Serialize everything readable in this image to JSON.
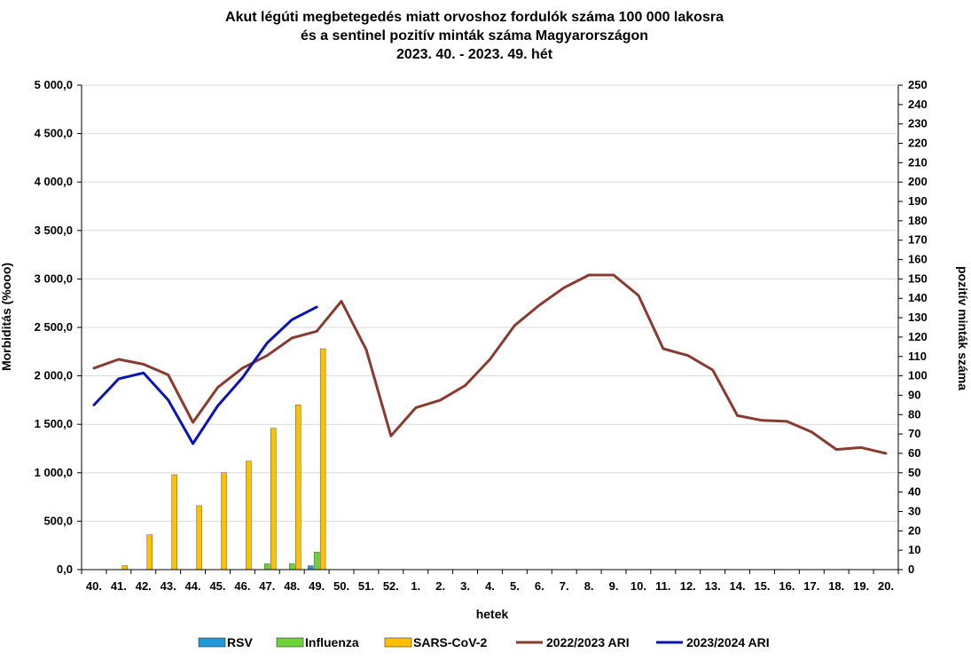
{
  "chart_data": {
    "type": "bar+line",
    "title": [
      "Akut légúti megbetegedés miatt orvoshoz fordulók száma 100 000 lakosra",
      "és a sentinel pozitív minták száma Magyarországon",
      "2023. 40. - 2023. 49. hét"
    ],
    "xlabel": "hetek",
    "ylabel_left": "Morbiditás (%ooo)",
    "ylabel_right": "pozitív minták száma",
    "ylim_left": [
      0,
      5000
    ],
    "ylim_right": [
      0,
      250
    ],
    "grid": true,
    "legend_position": "bottom",
    "categories": [
      "40.",
      "41.",
      "42.",
      "43.",
      "44.",
      "45.",
      "46.",
      "47.",
      "48.",
      "49.",
      "50.",
      "51.",
      "52.",
      "1.",
      "2.",
      "3.",
      "4.",
      "5.",
      "6.",
      "7.",
      "8.",
      "9.",
      "10.",
      "11.",
      "12.",
      "13.",
      "14.",
      "15.",
      "16.",
      "17.",
      "18.",
      "19.",
      "20."
    ],
    "left_ticks": [
      "0,0",
      "500,0",
      "1 000,0",
      "1 500,0",
      "2 000,0",
      "2 500,0",
      "3 000,0",
      "3 500,0",
      "4 000,0",
      "4 500,0",
      "5 000,0"
    ],
    "right_ticks": [
      "0",
      "10",
      "20",
      "30",
      "40",
      "50",
      "60",
      "70",
      "80",
      "90",
      "100",
      "110",
      "120",
      "130",
      "140",
      "150",
      "160",
      "170",
      "180",
      "190",
      "200",
      "210",
      "220",
      "230",
      "240",
      "250"
    ],
    "bar_series": [
      {
        "name": "RSV",
        "color": "#1f9ad6",
        "axis": "right",
        "values": [
          0,
          0,
          0,
          0,
          0,
          0,
          0,
          0,
          0,
          2,
          null,
          null,
          null,
          null,
          null,
          null,
          null,
          null,
          null,
          null,
          null,
          null,
          null,
          null,
          null,
          null,
          null,
          null,
          null,
          null,
          null,
          null,
          null
        ]
      },
      {
        "name": "Influenza",
        "color": "#6ed23b",
        "axis": "right",
        "values": [
          0,
          0,
          0,
          0,
          0,
          0,
          0,
          3,
          3,
          9,
          null,
          null,
          null,
          null,
          null,
          null,
          null,
          null,
          null,
          null,
          null,
          null,
          null,
          null,
          null,
          null,
          null,
          null,
          null,
          null,
          null,
          null,
          null
        ]
      },
      {
        "name": "SARS-CoV-2",
        "color": "#ffc000",
        "axis": "right",
        "values": [
          0,
          2,
          18,
          49,
          33,
          50,
          56,
          73,
          85,
          114,
          null,
          null,
          null,
          null,
          null,
          null,
          null,
          null,
          null,
          null,
          null,
          null,
          null,
          null,
          null,
          null,
          null,
          null,
          null,
          null,
          null,
          null,
          null
        ]
      }
    ],
    "line_series": [
      {
        "name": "2022/2023 ARI",
        "color": "#8b3a2f",
        "axis": "left",
        "values": [
          2080,
          2170,
          2120,
          2010,
          1520,
          1880,
          2080,
          2210,
          2390,
          2460,
          2770,
          2270,
          1380,
          1670,
          1750,
          1900,
          2170,
          2520,
          2730,
          2910,
          3040,
          3040,
          2830,
          2280,
          2210,
          2060,
          1590,
          1540,
          1530,
          1420,
          1240,
          1260,
          1200
        ]
      },
      {
        "name": "2023/2024 ARI",
        "color": "#0a14b4",
        "axis": "left",
        "values": [
          1700,
          1970,
          2030,
          1750,
          1300,
          1690,
          1980,
          2340,
          2580,
          2710,
          null,
          null,
          null,
          null,
          null,
          null,
          null,
          null,
          null,
          null,
          null,
          null,
          null,
          null,
          null,
          null,
          null,
          null,
          null,
          null,
          null,
          null,
          null
        ]
      }
    ]
  }
}
